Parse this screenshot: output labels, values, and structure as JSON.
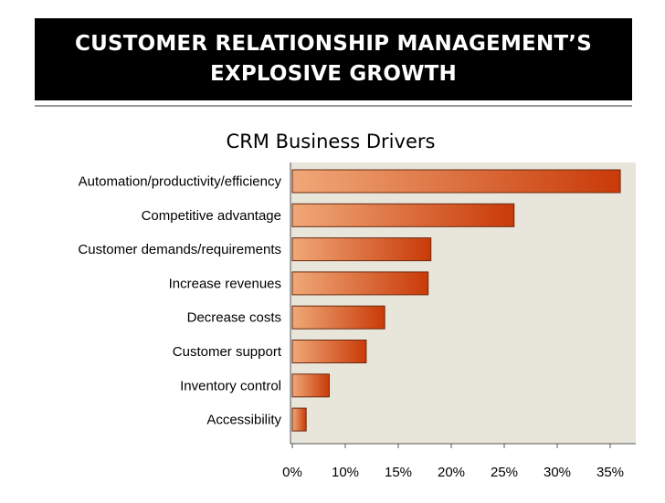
{
  "slide": {
    "title": "CUSTOMER RELATIONSHIP MANAGEMENT’S EXPLOSIVE GROWTH"
  },
  "colors": {
    "banner": "#000000",
    "plot_bg": "#e8e5da",
    "bar_light": "#f0a878",
    "bar_dark": "#c93a08",
    "bar_edge": "#6a2a10"
  },
  "chart_data": {
    "type": "bar",
    "orientation": "horizontal",
    "title": "CRM Business Drivers",
    "categories": [
      "Automation/productivity/efficiency",
      "Competitive advantage",
      "Customer demands/requirements",
      "Increase revenues",
      "Decrease costs",
      "Customer support",
      "Inventory control",
      "Accessibility"
    ],
    "values": [
      35.5,
      24,
      15,
      14.7,
      10,
      8,
      4,
      1.5
    ],
    "xlim": [
      0,
      35
    ],
    "xticks": [
      "0%",
      "10%",
      "15%",
      "20%",
      "25%",
      "30%",
      "35%"
    ],
    "xlabel": "",
    "ylabel": "",
    "grid": false,
    "legend": "none"
  }
}
